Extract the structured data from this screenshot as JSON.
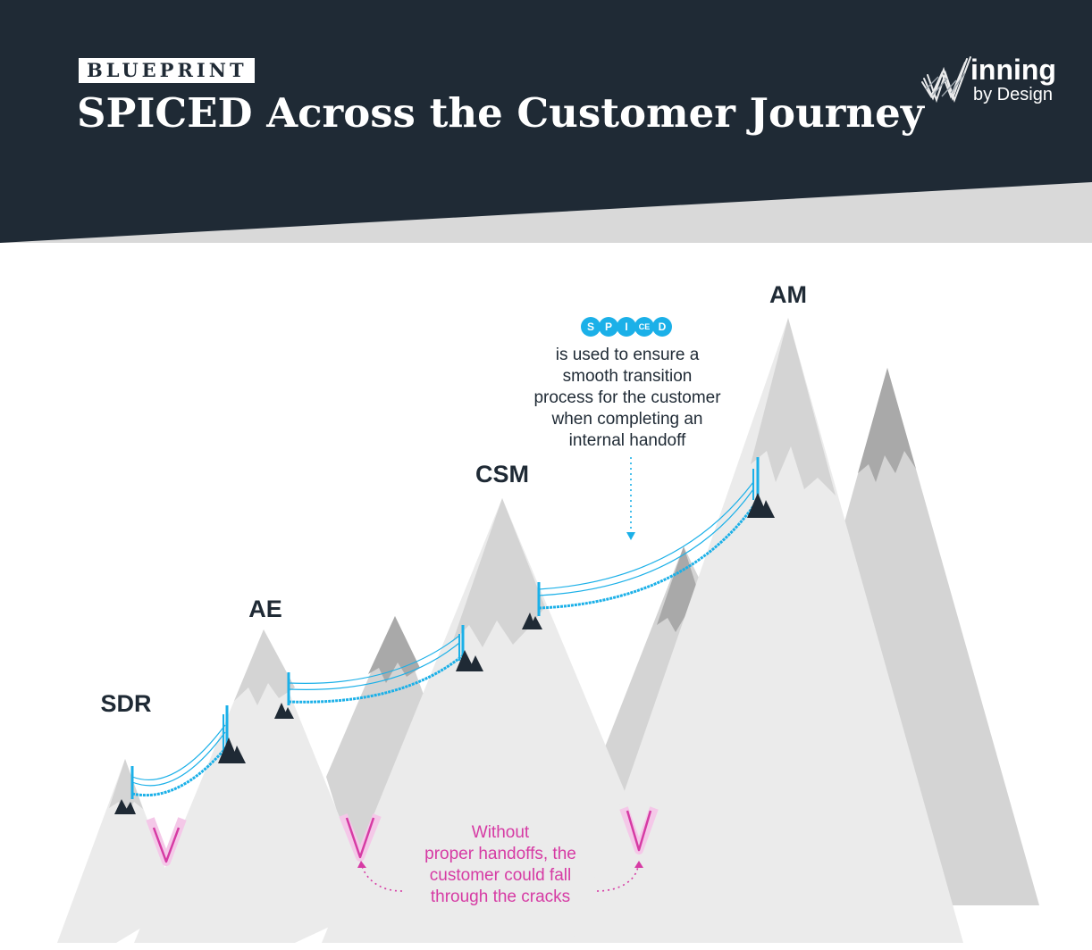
{
  "header": {
    "eyebrow": "BLUEPRINT",
    "title": "SPICED Across the Customer Journey",
    "logo_main": "inning",
    "logo_sub": "by Design"
  },
  "stages": {
    "sdr": "SDR",
    "ae": "AE",
    "csm": "CSM",
    "am": "AM"
  },
  "spiced_badges": [
    "S",
    "P",
    "I",
    "CE",
    "D"
  ],
  "note": {
    "lines": [
      "is used to ensure a",
      "smooth transition",
      "process for the customer",
      "when completing an",
      "internal handoff"
    ]
  },
  "warning": {
    "lines": [
      "Without",
      "proper handoffs, the",
      "customer could fall",
      "through the cracks"
    ]
  },
  "colors": {
    "header_bg": "#1f2a35",
    "accent_blue": "#1bb0e8",
    "warning_magenta": "#d63ba4",
    "mountain_light": "#ebebeb",
    "mountain_mid": "#d4d4d4",
    "mountain_dark": "#a9a9a9"
  }
}
